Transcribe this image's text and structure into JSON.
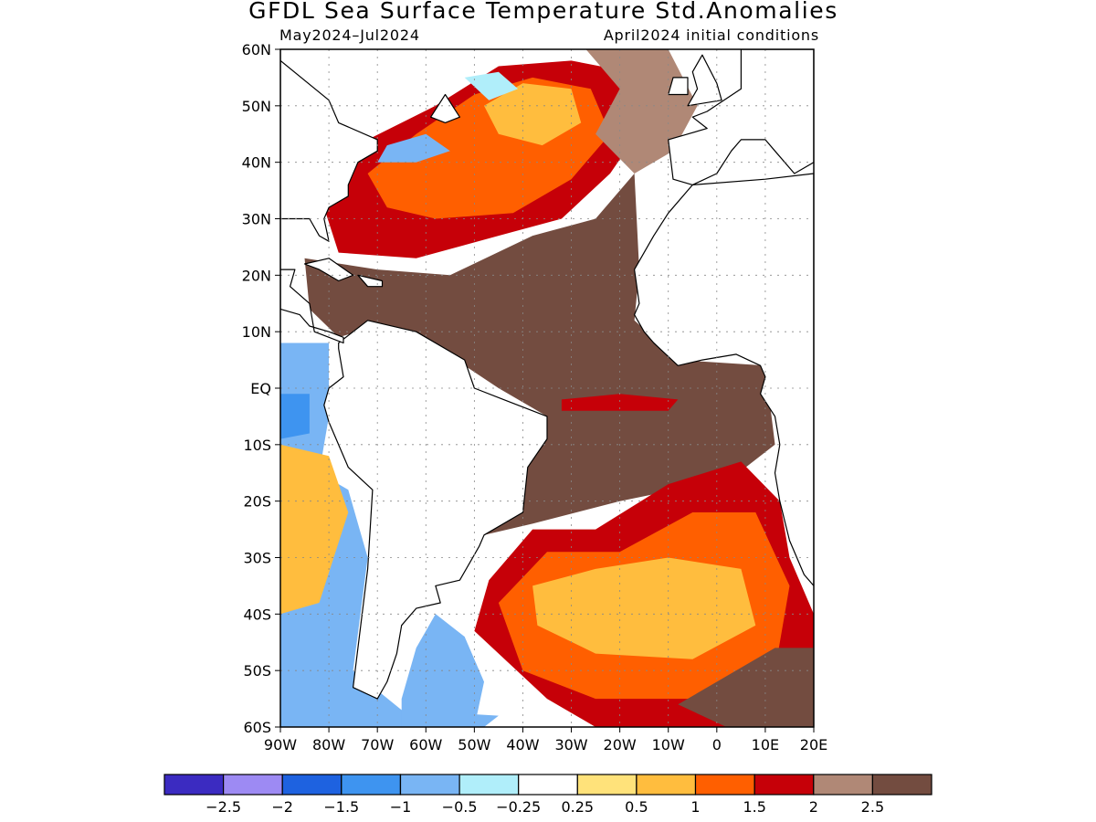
{
  "title": "GFDL Sea Surface Temperature Std.Anomalies",
  "period": "May2024–Jul2024",
  "initial_conditions": "April2024 initial conditions",
  "map": {
    "lon_range": [
      -90,
      20
    ],
    "lat_range": [
      -60,
      60
    ],
    "lat_labels": [
      {
        "value": 60,
        "label": "60N"
      },
      {
        "value": 50,
        "label": "50N"
      },
      {
        "value": 40,
        "label": "40N"
      },
      {
        "value": 30,
        "label": "30N"
      },
      {
        "value": 20,
        "label": "20N"
      },
      {
        "value": 10,
        "label": "10N"
      },
      {
        "value": 0,
        "label": "EQ"
      },
      {
        "value": -10,
        "label": "10S"
      },
      {
        "value": -20,
        "label": "20S"
      },
      {
        "value": -30,
        "label": "30S"
      },
      {
        "value": -40,
        "label": "40S"
      },
      {
        "value": -50,
        "label": "50S"
      },
      {
        "value": -60,
        "label": "60S"
      }
    ],
    "lon_labels": [
      {
        "value": -90,
        "label": "90W"
      },
      {
        "value": -80,
        "label": "80W"
      },
      {
        "value": -70,
        "label": "70W"
      },
      {
        "value": -60,
        "label": "60W"
      },
      {
        "value": -50,
        "label": "50W"
      },
      {
        "value": -40,
        "label": "40W"
      },
      {
        "value": -30,
        "label": "30W"
      },
      {
        "value": -20,
        "label": "20W"
      },
      {
        "value": -10,
        "label": "10W"
      },
      {
        "value": 0,
        "label": "0"
      },
      {
        "value": 10,
        "label": "10E"
      },
      {
        "value": 20,
        "label": "20E"
      }
    ]
  },
  "colorbar": {
    "colors": [
      "#3b2bc1",
      "#9d8af3",
      "#1e62e0",
      "#3e94f0",
      "#79b5f4",
      "#b0eefa",
      "#ffffff",
      "#ffe27a",
      "#ffbd3e",
      "#ff5f00",
      "#c60008",
      "#b08876",
      "#734c40"
    ],
    "labels": [
      "−2.5",
      "−2",
      "−1.5",
      "−1",
      "−0.5",
      "−0.25",
      "0.25",
      "0.5",
      "1",
      "1.5",
      "2",
      "2.5"
    ]
  },
  "regions": [
    {
      "name": "north-atlantic-warm",
      "color": "#c60008",
      "lonlat": [
        [
          -81,
          32
        ],
        [
          -72,
          44
        ],
        [
          -58,
          50
        ],
        [
          -45,
          57
        ],
        [
          -30,
          58
        ],
        [
          -18,
          56
        ],
        [
          -14,
          48
        ],
        [
          -22,
          38
        ],
        [
          -32,
          30
        ],
        [
          -45,
          27
        ],
        [
          -62,
          23
        ],
        [
          -78,
          24
        ]
      ]
    },
    {
      "name": "north-atlantic-core",
      "color": "#ff5f00",
      "lonlat": [
        [
          -72,
          38
        ],
        [
          -62,
          45
        ],
        [
          -50,
          52
        ],
        [
          -38,
          55
        ],
        [
          -26,
          53
        ],
        [
          -22,
          45
        ],
        [
          -30,
          37
        ],
        [
          -42,
          31
        ],
        [
          -58,
          30
        ],
        [
          -68,
          32
        ]
      ]
    },
    {
      "name": "north-atlantic-peak",
      "color": "#ffbd3e",
      "lonlat": [
        [
          -48,
          50
        ],
        [
          -40,
          54
        ],
        [
          -30,
          53
        ],
        [
          -28,
          47
        ],
        [
          -36,
          43
        ],
        [
          -45,
          45
        ]
      ]
    },
    {
      "name": "tropical-atlantic-brown",
      "color": "#734c40",
      "lonlat": [
        [
          -85,
          23
        ],
        [
          -70,
          21
        ],
        [
          -55,
          20
        ],
        [
          -38,
          27
        ],
        [
          -25,
          30
        ],
        [
          -17,
          38
        ],
        [
          -16,
          21
        ],
        [
          -17,
          12
        ],
        [
          -8,
          5
        ],
        [
          10,
          4
        ],
        [
          12,
          -10
        ],
        [
          3,
          -16
        ],
        [
          -20,
          -20
        ],
        [
          -38,
          -24
        ],
        [
          -48,
          -26
        ],
        [
          -40,
          -10
        ],
        [
          -35,
          -5
        ],
        [
          -45,
          0
        ],
        [
          -52,
          4
        ],
        [
          -62,
          10
        ],
        [
          -70,
          11
        ],
        [
          -78,
          9
        ],
        [
          -84,
          14
        ]
      ]
    },
    {
      "name": "ne-atlantic-light-brown",
      "color": "#b08876",
      "lonlat": [
        [
          -27,
          60
        ],
        [
          -10,
          60
        ],
        [
          -4,
          50
        ],
        [
          -9,
          42
        ],
        [
          -17,
          38
        ],
        [
          -25,
          45
        ],
        [
          -20,
          53
        ]
      ]
    },
    {
      "name": "equatorial-warm-tongue",
      "color": "#c60008",
      "lonlat": [
        [
          -32,
          -2
        ],
        [
          -20,
          -1
        ],
        [
          -8,
          -2
        ],
        [
          -10,
          -4
        ],
        [
          -22,
          -4
        ],
        [
          -32,
          -4
        ]
      ]
    },
    {
      "name": "south-atlantic-warm",
      "color": "#c60008",
      "lonlat": [
        [
          -47,
          -34
        ],
        [
          -38,
          -25
        ],
        [
          -25,
          -25
        ],
        [
          -10,
          -17
        ],
        [
          5,
          -13
        ],
        [
          13,
          -20
        ],
        [
          15,
          -30
        ],
        [
          20,
          -40
        ],
        [
          20,
          -60
        ],
        [
          -25,
          -60
        ],
        [
          -35,
          -55
        ],
        [
          -50,
          -43
        ]
      ]
    },
    {
      "name": "south-atlantic-core",
      "color": "#ff5f00",
      "lonlat": [
        [
          -45,
          -38
        ],
        [
          -35,
          -29
        ],
        [
          -20,
          -29
        ],
        [
          -5,
          -22
        ],
        [
          8,
          -22
        ],
        [
          15,
          -35
        ],
        [
          12,
          -50
        ],
        [
          -5,
          -55
        ],
        [
          -25,
          -55
        ],
        [
          -40,
          -50
        ]
      ]
    },
    {
      "name": "south-atlantic-peak",
      "color": "#ffbd3e",
      "lonlat": [
        [
          -38,
          -35
        ],
        [
          -25,
          -32
        ],
        [
          -10,
          -30
        ],
        [
          5,
          -32
        ],
        [
          8,
          -42
        ],
        [
          -5,
          -48
        ],
        [
          -25,
          -47
        ],
        [
          -37,
          -42
        ]
      ]
    },
    {
      "name": "southeast-brown",
      "color": "#734c40",
      "lonlat": [
        [
          0,
          -52
        ],
        [
          12,
          -46
        ],
        [
          20,
          -46
        ],
        [
          20,
          -60
        ],
        [
          2,
          -60
        ],
        [
          -8,
          -56
        ]
      ]
    },
    {
      "name": "pacific-cool",
      "color": "#79b5f4",
      "lonlat": [
        [
          -90,
          8
        ],
        [
          -80,
          8
        ],
        [
          -80,
          -5
        ],
        [
          -82,
          -15
        ],
        [
          -76,
          -18
        ],
        [
          -72,
          -30
        ],
        [
          -75,
          -50
        ],
        [
          -65,
          -57
        ],
        [
          -45,
          -58
        ],
        [
          -48,
          -60
        ],
        [
          -90,
          -60
        ]
      ]
    },
    {
      "name": "pacific-cool-deep",
      "color": "#3e94f0",
      "lonlat": [
        [
          -90,
          -1
        ],
        [
          -84,
          -1
        ],
        [
          -84,
          -8
        ],
        [
          -90,
          -9
        ]
      ]
    },
    {
      "name": "pacific-warm-patch",
      "color": "#ffbd3e",
      "lonlat": [
        [
          -90,
          -10
        ],
        [
          -80,
          -12
        ],
        [
          -76,
          -22
        ],
        [
          -82,
          -38
        ],
        [
          -90,
          -40
        ]
      ]
    },
    {
      "name": "patagonia-shelf-cool",
      "color": "#79b5f4",
      "lonlat": [
        [
          -58,
          -40
        ],
        [
          -52,
          -44
        ],
        [
          -48,
          -52
        ],
        [
          -50,
          -60
        ],
        [
          -65,
          -60
        ],
        [
          -65,
          -55
        ],
        [
          -62,
          -46
        ]
      ]
    },
    {
      "name": "gulf-stream-cool",
      "color": "#79b5f4",
      "lonlat": [
        [
          -68,
          43
        ],
        [
          -60,
          45
        ],
        [
          -55,
          42
        ],
        [
          -62,
          40
        ],
        [
          -70,
          40
        ]
      ]
    },
    {
      "name": "labrador-sea-cool",
      "color": "#b0eefa",
      "lonlat": [
        [
          -52,
          55
        ],
        [
          -45,
          56
        ],
        [
          -41,
          53
        ],
        [
          -47,
          51
        ]
      ]
    }
  ],
  "land": [
    {
      "name": "south-america",
      "lonlat": [
        [
          -78,
          8
        ],
        [
          -72,
          12
        ],
        [
          -62,
          10
        ],
        [
          -52,
          5
        ],
        [
          -50,
          0
        ],
        [
          -44,
          -2
        ],
        [
          -35,
          -5
        ],
        [
          -35,
          -9
        ],
        [
          -39,
          -14
        ],
        [
          -40,
          -22
        ],
        [
          -48,
          -26
        ],
        [
          -49,
          -28
        ],
        [
          -53,
          -34
        ],
        [
          -58,
          -35
        ],
        [
          -57,
          -38
        ],
        [
          -62,
          -39
        ],
        [
          -65,
          -42
        ],
        [
          -66,
          -47
        ],
        [
          -68,
          -52
        ],
        [
          -70,
          -55
        ],
        [
          -75,
          -53
        ],
        [
          -74,
          -46
        ],
        [
          -72,
          -32
        ],
        [
          -71,
          -18
        ],
        [
          -76,
          -14
        ],
        [
          -80,
          -6
        ],
        [
          -81,
          -3
        ],
        [
          -80,
          0
        ],
        [
          -77,
          2
        ],
        [
          -78,
          7
        ]
      ]
    },
    {
      "name": "africa",
      "lonlat": [
        [
          -17,
          21
        ],
        [
          -16,
          15
        ],
        [
          -17,
          13
        ],
        [
          -15,
          10
        ],
        [
          -13,
          8
        ],
        [
          -8,
          4
        ],
        [
          -3,
          5
        ],
        [
          4,
          6
        ],
        [
          9,
          4
        ],
        [
          10,
          2
        ],
        [
          9,
          -1
        ],
        [
          12,
          -5
        ],
        [
          13,
          -10
        ],
        [
          12,
          -15
        ],
        [
          13,
          -20
        ],
        [
          15,
          -27
        ],
        [
          18,
          -33
        ],
        [
          20,
          -35
        ],
        [
          20,
          38
        ],
        [
          10,
          37
        ],
        [
          -5,
          36
        ],
        [
          -10,
          31
        ],
        [
          -13,
          27
        ]
      ]
    },
    {
      "name": "north-america",
      "lonlat": [
        [
          -90,
          60
        ],
        [
          -90,
          58
        ],
        [
          -80,
          51
        ],
        [
          -78,
          47
        ],
        [
          -70,
          44
        ],
        [
          -70,
          42
        ],
        [
          -74,
          40
        ],
        [
          -76,
          36
        ],
        [
          -76,
          34
        ],
        [
          -80,
          32
        ],
        [
          -81,
          30
        ],
        [
          -80,
          26
        ],
        [
          -82,
          27
        ],
        [
          -84,
          30
        ],
        [
          -88,
          30
        ],
        [
          -90,
          30
        ],
        [
          -90,
          21
        ],
        [
          -87,
          21
        ],
        [
          -88,
          18
        ],
        [
          -84,
          15
        ],
        [
          -83,
          10
        ],
        [
          -80,
          9
        ],
        [
          -77,
          8
        ],
        [
          -77,
          9
        ],
        [
          -80,
          10
        ],
        [
          -84,
          11
        ],
        [
          -86,
          13
        ],
        [
          -90,
          14
        ],
        [
          -90,
          60
        ]
      ]
    },
    {
      "name": "cuba",
      "lonlat": [
        [
          -85,
          22
        ],
        [
          -80,
          23
        ],
        [
          -75,
          20
        ],
        [
          -78,
          19
        ],
        [
          -82,
          21
        ]
      ]
    },
    {
      "name": "hispaniola",
      "lonlat": [
        [
          -74,
          20
        ],
        [
          -69,
          19
        ],
        [
          -69,
          18
        ],
        [
          -72,
          18
        ]
      ]
    },
    {
      "name": "iberia-europe",
      "lonlat": [
        [
          -10,
          44
        ],
        [
          -9,
          37
        ],
        [
          -5,
          36
        ],
        [
          0,
          38
        ],
        [
          3,
          42
        ],
        [
          5,
          44
        ],
        [
          10,
          44
        ],
        [
          12,
          42
        ],
        [
          16,
          38
        ],
        [
          20,
          40
        ],
        [
          20,
          60
        ],
        [
          5,
          60
        ],
        [
          5,
          53
        ],
        [
          -2,
          49
        ],
        [
          -5,
          48
        ],
        [
          -2,
          46
        ]
      ]
    },
    {
      "name": "great-britain",
      "lonlat": [
        [
          -6,
          50
        ],
        [
          -4,
          53
        ],
        [
          -5,
          56
        ],
        [
          -3,
          59
        ],
        [
          0,
          54
        ],
        [
          1,
          51
        ]
      ]
    },
    {
      "name": "ireland",
      "lonlat": [
        [
          -10,
          52
        ],
        [
          -9,
          55
        ],
        [
          -6,
          55
        ],
        [
          -6,
          52
        ]
      ]
    },
    {
      "name": "newfoundland",
      "lonlat": [
        [
          -59,
          48
        ],
        [
          -56,
          52
        ],
        [
          -53,
          48
        ],
        [
          -56,
          47
        ]
      ]
    }
  ]
}
